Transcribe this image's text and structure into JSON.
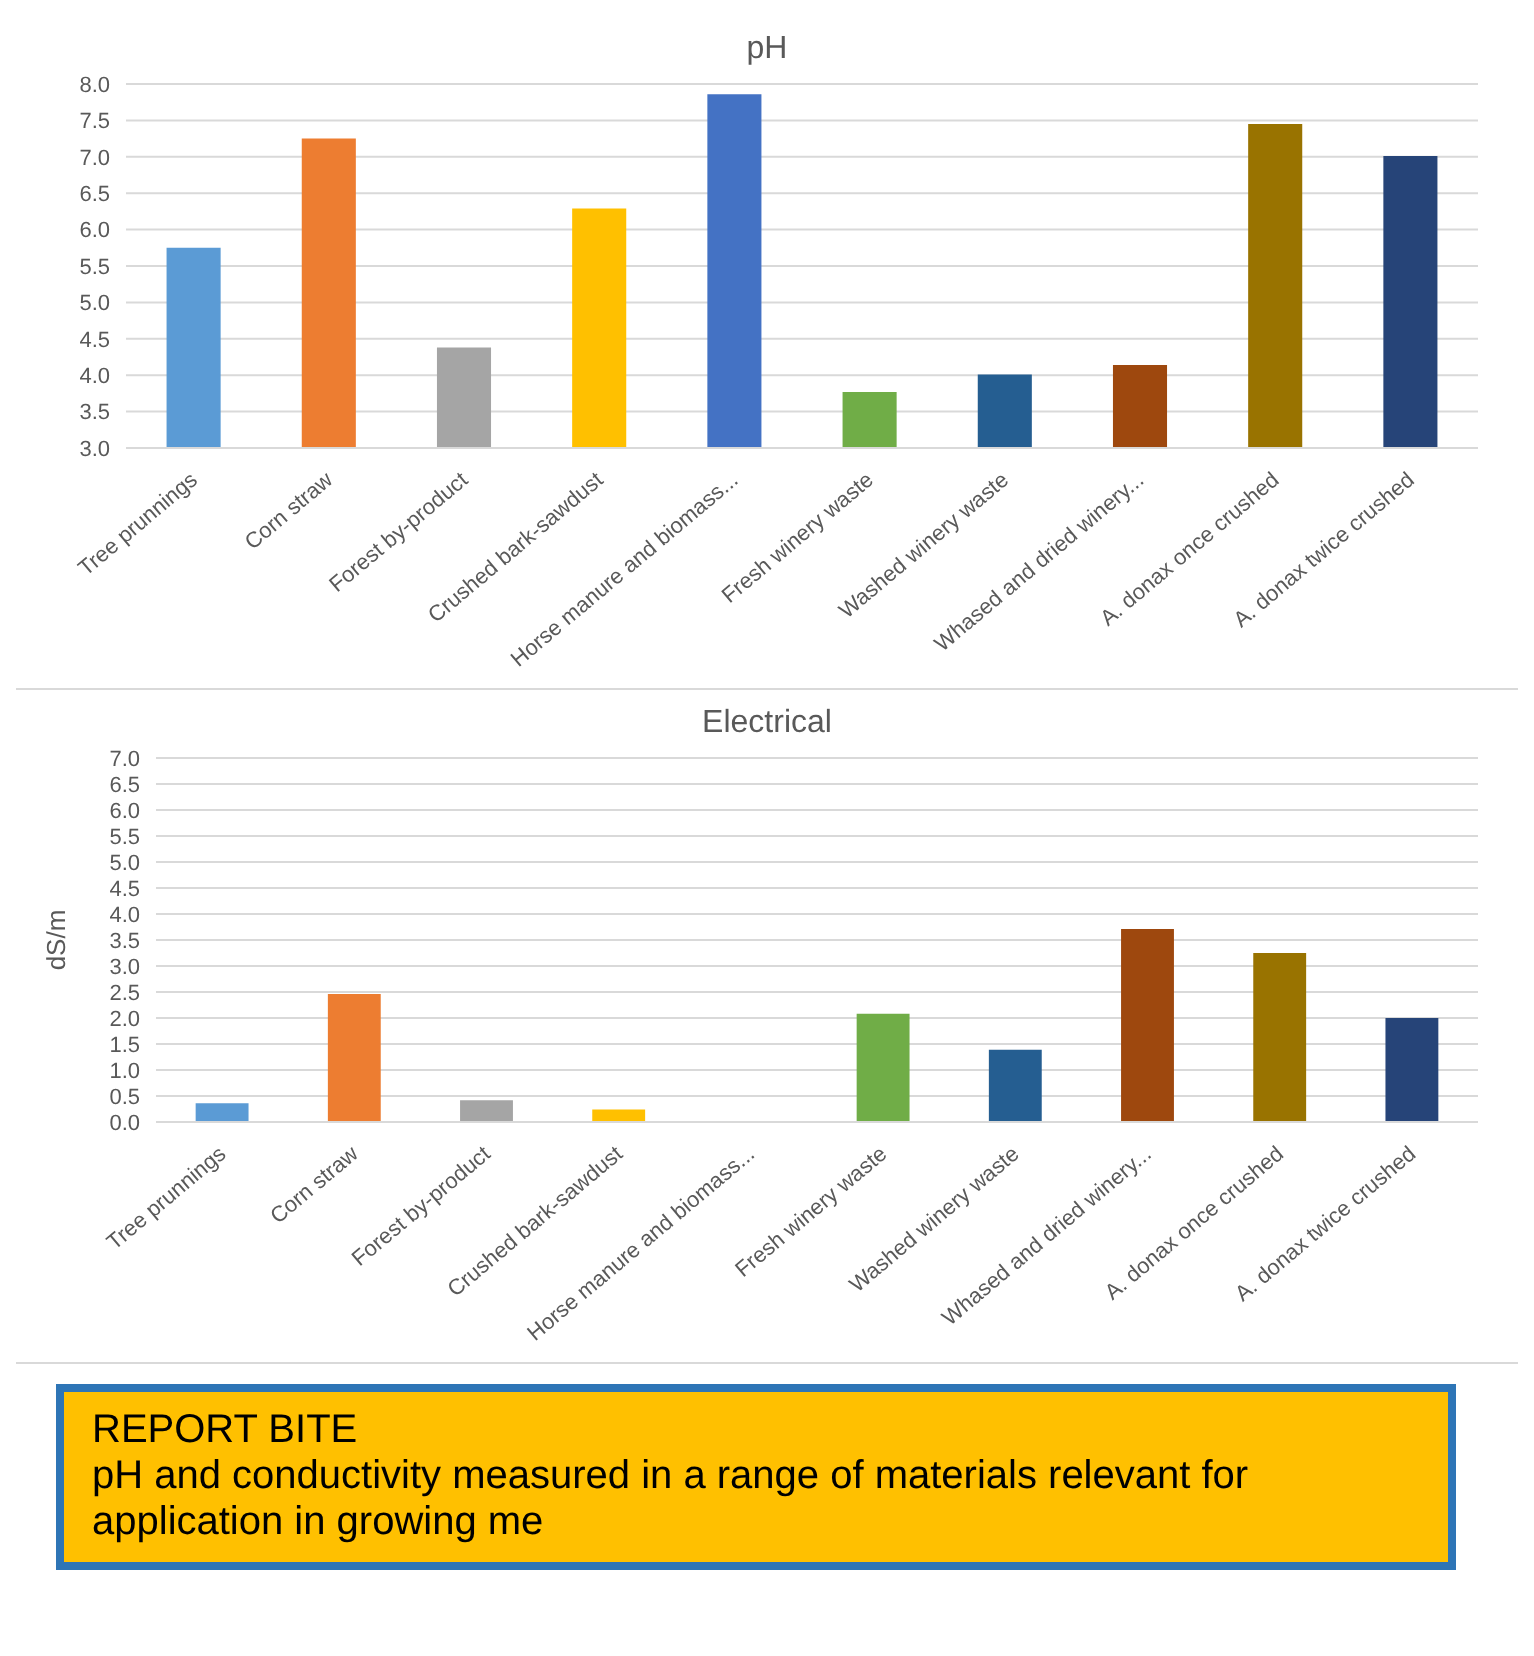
{
  "chart_data": [
    {
      "type": "bar",
      "title": "pH",
      "categories": [
        "Tree prunnings",
        "Corn straw",
        "Forest by-product",
        "Crushed bark-sawdust",
        "Horse manure and biomass...",
        "Fresh winery waste",
        "Washed winery waste",
        "Whased and dried winery...",
        "A. donax once crushed",
        "A. donax twice crushed"
      ],
      "values": [
        5.75,
        7.25,
        4.38,
        6.29,
        7.86,
        3.77,
        4.01,
        4.14,
        7.45,
        7.01
      ],
      "colors": [
        "#5b9bd5",
        "#ed7d31",
        "#a5a5a5",
        "#ffc000",
        "#4472c4",
        "#70ad47",
        "#255e91",
        "#9e480e",
        "#997300",
        "#264478"
      ],
      "ylim": [
        3.0,
        8.0
      ],
      "yticks": [
        {
          "value": 3,
          "label": "3.0"
        },
        {
          "value": 3.5,
          "label": "3.5"
        },
        {
          "value": 4,
          "label": "4.0"
        },
        {
          "value": 4.5,
          "label": "4.5"
        },
        {
          "value": 5,
          "label": "5.0"
        },
        {
          "value": 5.5,
          "label": "5.5"
        },
        {
          "value": 6,
          "label": "6.0"
        },
        {
          "value": 6.5,
          "label": "6.5"
        },
        {
          "value": 7,
          "label": "7.0"
        },
        {
          "value": 7.5,
          "label": "7.5"
        },
        {
          "value": 8,
          "label": "8.0"
        }
      ],
      "grid": "y"
    },
    {
      "type": "bar",
      "title": "Electrical",
      "ylabel": "dS/m",
      "categories": [
        "Tree prunnings",
        "Corn straw",
        "Forest by-product",
        "Crushed bark-sawdust",
        "Horse manure and biomass...",
        "Fresh winery waste",
        "Washed winery waste",
        "Whased and dried winery...",
        "A. donax once crushed",
        "A. donax twice crushed"
      ],
      "values": [
        0.36,
        2.46,
        0.42,
        0.24,
        null,
        2.08,
        1.39,
        3.71,
        3.25,
        2.0
      ],
      "colors": [
        "#5b9bd5",
        "#ed7d31",
        "#a5a5a5",
        "#ffc000",
        "#4472c4",
        "#70ad47",
        "#255e91",
        "#9e480e",
        "#997300",
        "#264478"
      ],
      "ylim": [
        0.0,
        7.0
      ],
      "yticks": [
        {
          "value": 0,
          "label": "0.0"
        },
        {
          "value": 0.5,
          "label": "0.5"
        },
        {
          "value": 1,
          "label": "1.0"
        },
        {
          "value": 1.5,
          "label": "1.5"
        },
        {
          "value": 2,
          "label": "2.0"
        },
        {
          "value": 2.5,
          "label": "2.5"
        },
        {
          "value": 3,
          "label": "3.0"
        },
        {
          "value": 3.5,
          "label": "3.5"
        },
        {
          "value": 4,
          "label": "4.0"
        },
        {
          "value": 4.5,
          "label": "4.5"
        },
        {
          "value": 5,
          "label": "5.0"
        },
        {
          "value": 5.5,
          "label": "5.5"
        },
        {
          "value": 6,
          "label": "6.0"
        },
        {
          "value": 6.5,
          "label": "6.5"
        },
        {
          "value": 7,
          "label": "7.0"
        }
      ],
      "grid": "y"
    },
    {
      "type": "other",
      "title": "REPORT BITE",
      "annotations": [
        "pH and conductivity measured in a range of materials relevant for application in growing me"
      ]
    }
  ]
}
